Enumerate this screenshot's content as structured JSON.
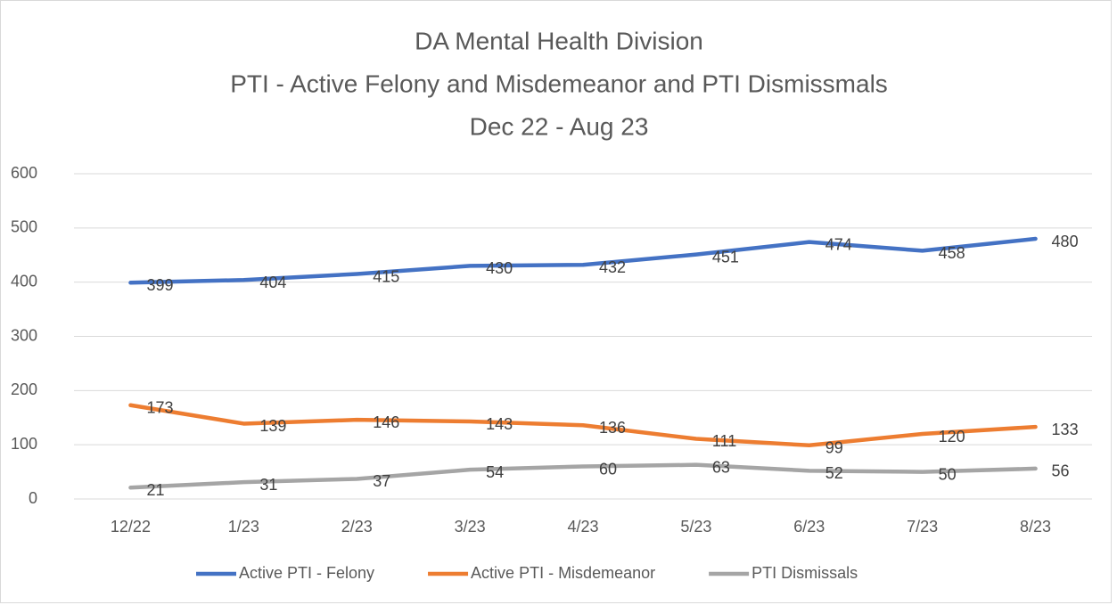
{
  "chart_data": {
    "type": "line",
    "title": [
      "DA Mental Health Division",
      "PTI - Active Felony and Misdemeanor and PTI Dismissmals",
      "Dec 22 - Aug 23"
    ],
    "categories": [
      "12/22",
      "1/23",
      "2/23",
      "3/23",
      "4/23",
      "5/23",
      "6/23",
      "7/23",
      "8/23"
    ],
    "series": [
      {
        "name": "Active PTI - Felony",
        "color": "#4472c4",
        "values": [
          399,
          404,
          415,
          430,
          432,
          451,
          474,
          458,
          480
        ]
      },
      {
        "name": "Active PTI - Misdemeanor",
        "color": "#ed7d31",
        "values": [
          173,
          139,
          146,
          143,
          136,
          111,
          99,
          120,
          133
        ]
      },
      {
        "name": "PTI Dismissals",
        "color": "#a5a5a5",
        "values": [
          21,
          31,
          37,
          54,
          60,
          63,
          52,
          50,
          56
        ]
      }
    ],
    "ylim": [
      0,
      600
    ],
    "yticks": [
      0,
      100,
      200,
      300,
      400,
      500,
      600
    ],
    "grid": true,
    "legend": "bottom"
  }
}
